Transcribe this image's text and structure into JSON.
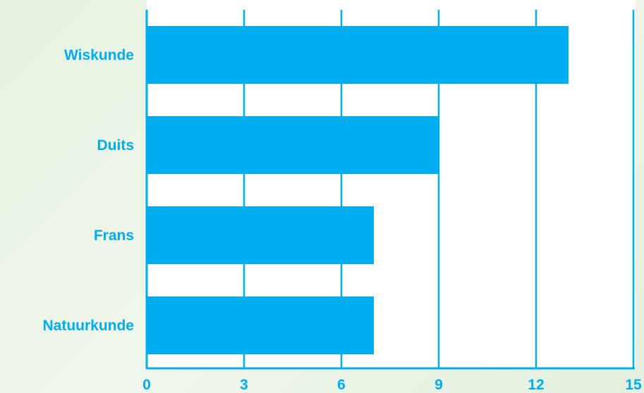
{
  "chart_data": {
    "type": "bar",
    "orientation": "horizontal",
    "categories": [
      "Wiskunde",
      "Duits",
      "Frans",
      "Natuurkunde"
    ],
    "values": [
      13,
      9,
      7,
      7
    ],
    "xlim": [
      0,
      15
    ],
    "xticks": [
      0,
      3,
      6,
      9,
      12,
      15
    ],
    "xtick_labels": [
      "0",
      "3",
      "6",
      "9",
      "12",
      "15"
    ],
    "grid": "vertical",
    "title": "",
    "xlabel": "",
    "ylabel": "",
    "colors": {
      "bar": "#00aeef",
      "grid": "#00aeef",
      "label": "#00aeef",
      "plot_background": "#ffffff"
    }
  }
}
